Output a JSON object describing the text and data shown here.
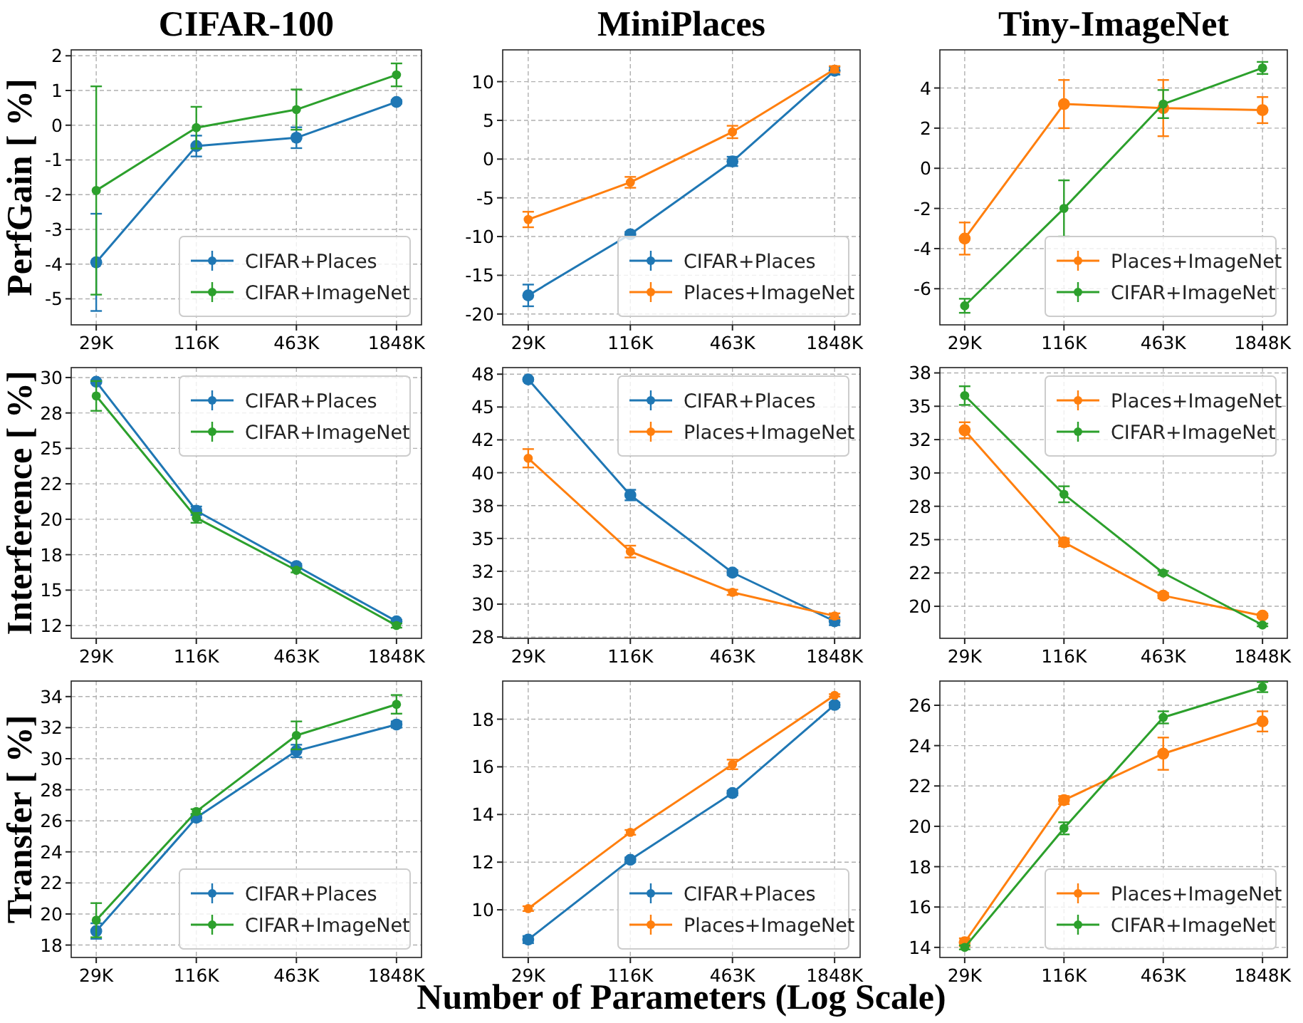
{
  "chart_data": [
    {
      "type": "line",
      "title": "CIFAR-100",
      "ylabel": "PerfGain [ %]",
      "categories": [
        "29K",
        "116K",
        "463K",
        "1848K"
      ],
      "ylim": [
        -5.75,
        2.17
      ],
      "yticks": [
        -5,
        -4,
        -3,
        -2,
        -1,
        0,
        1,
        2
      ],
      "grid": true,
      "legend": "bottom right",
      "marker": "circle",
      "series": [
        {
          "name": "CIFAR+Places",
          "color": "#1f77b4",
          "values": [
            -3.95,
            -0.6,
            -0.36,
            0.67
          ],
          "errors": [
            1.4,
            0.3,
            0.3,
            0.05
          ]
        },
        {
          "name": "CIFAR+ImageNet",
          "color": "#2ca02c",
          "values": [
            -1.88,
            -0.07,
            0.45,
            1.45
          ],
          "errors": [
            3.0,
            0.6,
            0.58,
            0.33
          ]
        }
      ]
    },
    {
      "type": "line",
      "title": "MiniPlaces",
      "categories": [
        "29K",
        "116K",
        "463K",
        "1848K"
      ],
      "ylim": [
        -21.4,
        14.1
      ],
      "yticks": [
        -20,
        -15,
        -10,
        -5,
        0,
        5,
        10
      ],
      "grid": true,
      "legend": "bottom right",
      "marker": "circle",
      "series": [
        {
          "name": "CIFAR+Places",
          "color": "#1f77b4",
          "values": [
            -17.6,
            -9.7,
            -0.3,
            11.4
          ],
          "errors": [
            1.4,
            0.3,
            0.6,
            0.5
          ]
        },
        {
          "name": "Places+ImageNet",
          "color": "#ff7f0e",
          "values": [
            -7.8,
            -3.0,
            3.5,
            11.6
          ],
          "errors": [
            1.0,
            0.7,
            0.8,
            0.4
          ]
        }
      ]
    },
    {
      "type": "line",
      "title": "Tiny-ImageNet",
      "categories": [
        "29K",
        "116K",
        "463K",
        "1848K"
      ],
      "ylim": [
        -7.8,
        5.9
      ],
      "yticks": [
        -6,
        -4,
        -2,
        0,
        2,
        4
      ],
      "grid": true,
      "legend": "bottom right",
      "marker": "circle",
      "series": [
        {
          "name": "Places+ImageNet",
          "color": "#ff7f0e",
          "values": [
            -3.5,
            3.2,
            3.0,
            2.9
          ],
          "errors": [
            0.8,
            1.2,
            1.4,
            0.65
          ]
        },
        {
          "name": "CIFAR+ImageNet",
          "color": "#2ca02c",
          "values": [
            -6.85,
            -2.0,
            3.2,
            5.0
          ],
          "errors": [
            0.35,
            1.4,
            0.7,
            0.3
          ]
        }
      ]
    },
    {
      "type": "line",
      "ylabel": "Interference [ %]",
      "categories": [
        "29K",
        "116K",
        "463K",
        "1848K"
      ],
      "ylim": [
        11.6,
        30.7
      ],
      "yticks": [
        {
          "value": 12.5,
          "label": "12"
        },
        15,
        {
          "value": 17.5,
          "label": "18"
        },
        20,
        {
          "value": 22.5,
          "label": "22"
        },
        25,
        {
          "value": 27.5,
          "label": "28"
        },
        30
      ],
      "grid": true,
      "legend": "top right",
      "marker": "circle",
      "series": [
        {
          "name": "CIFAR+Places",
          "color": "#1f77b4",
          "values": [
            29.7,
            20.6,
            16.7,
            12.8
          ],
          "errors": [
            0.1,
            0.3,
            0.15,
            0.1
          ]
        },
        {
          "name": "CIFAR+ImageNet",
          "color": "#2ca02c",
          "values": [
            28.7,
            20.1,
            16.4,
            12.5
          ],
          "errors": [
            1.05,
            0.35,
            0.15,
            0.15
          ]
        }
      ]
    },
    {
      "type": "line",
      "categories": [
        "29K",
        "116K",
        "463K",
        "1848K"
      ],
      "ylim": [
        27.4,
        48.0
      ],
      "yticks": [
        {
          "value": 27.5,
          "label": "28"
        },
        30,
        {
          "value": 32.5,
          "label": "32"
        },
        35,
        {
          "value": 37.5,
          "label": "38"
        },
        40,
        {
          "value": 42.5,
          "label": "42"
        },
        45,
        {
          "value": 47.5,
          "label": "48"
        }
      ],
      "grid": true,
      "legend": "top right",
      "marker": "circle",
      "series": [
        {
          "name": "CIFAR+Places",
          "color": "#1f77b4",
          "values": [
            47.1,
            38.3,
            32.4,
            28.7
          ],
          "errors": [
            0.1,
            0.4,
            0.2,
            0.3
          ]
        },
        {
          "name": "Places+ImageNet",
          "color": "#ff7f0e",
          "values": [
            41.1,
            34.0,
            30.9,
            29.1
          ],
          "errors": [
            0.7,
            0.45,
            0.2,
            0.2
          ]
        }
      ]
    },
    {
      "type": "line",
      "categories": [
        "29K",
        "116K",
        "463K",
        "1848K"
      ],
      "ylim": [
        17.6,
        37.9
      ],
      "yticks": [
        20,
        {
          "value": 22.5,
          "label": "22"
        },
        25,
        {
          "value": 27.5,
          "label": "28"
        },
        30,
        {
          "value": 32.5,
          "label": "32"
        },
        35,
        {
          "value": 37.5,
          "label": "38"
        }
      ],
      "grid": true,
      "legend": "top right",
      "marker": "circle",
      "series": [
        {
          "name": "Places+ImageNet",
          "color": "#ff7f0e",
          "values": [
            33.2,
            24.8,
            20.8,
            19.3
          ],
          "errors": [
            0.6,
            0.3,
            0.2,
            0.15
          ]
        },
        {
          "name": "CIFAR+ImageNet",
          "color": "#2ca02c",
          "values": [
            35.8,
            28.4,
            22.5,
            18.6
          ],
          "errors": [
            0.7,
            0.6,
            0.15,
            0.1
          ]
        }
      ]
    },
    {
      "type": "line",
      "ylabel": "Transfer [ %]",
      "categories": [
        "29K",
        "116K",
        "463K",
        "1848K"
      ],
      "ylim": [
        17.2,
        35.0
      ],
      "yticks": [
        18,
        20,
        22,
        24,
        26,
        28,
        30,
        32,
        34
      ],
      "grid": true,
      "legend": "bottom right",
      "marker": "circle",
      "series": [
        {
          "name": "CIFAR+Places",
          "color": "#1f77b4",
          "values": [
            18.9,
            26.2,
            30.5,
            32.2
          ],
          "errors": [
            0.5,
            0.2,
            0.4,
            0.2
          ]
        },
        {
          "name": "CIFAR+ImageNet",
          "color": "#2ca02c",
          "values": [
            19.6,
            26.6,
            31.5,
            33.5
          ],
          "errors": [
            1.1,
            0.15,
            0.9,
            0.6
          ]
        }
      ]
    },
    {
      "type": "line",
      "xlabel": "Number of Parameters (Log Scale)",
      "categories": [
        "29K",
        "116K",
        "463K",
        "1848K"
      ],
      "ylim": [
        8.0,
        19.6
      ],
      "yticks": [
        10,
        12,
        14,
        16,
        18
      ],
      "grid": true,
      "legend": "bottom right",
      "marker": "circle",
      "series": [
        {
          "name": "CIFAR+Places",
          "color": "#1f77b4",
          "values": [
            8.75,
            12.1,
            14.9,
            18.6
          ],
          "errors": [
            0.15,
            0.1,
            0.1,
            0.1
          ]
        },
        {
          "name": "Places+ImageNet",
          "color": "#ff7f0e",
          "values": [
            10.05,
            13.25,
            16.1,
            19.0
          ],
          "errors": [
            0.1,
            0.1,
            0.2,
            0.05
          ]
        }
      ]
    },
    {
      "type": "line",
      "categories": [
        "29K",
        "116K",
        "463K",
        "1848K"
      ],
      "ylim": [
        13.5,
        27.2
      ],
      "yticks": [
        14,
        16,
        18,
        20,
        22,
        24,
        26
      ],
      "grid": true,
      "legend": "bottom right",
      "marker": "circle",
      "series": [
        {
          "name": "Places+ImageNet",
          "color": "#ff7f0e",
          "values": [
            14.25,
            21.3,
            23.6,
            25.2
          ],
          "errors": [
            0.2,
            0.2,
            0.8,
            0.5
          ]
        },
        {
          "name": "CIFAR+ImageNet",
          "color": "#2ca02c",
          "values": [
            14.0,
            19.9,
            25.4,
            26.9
          ],
          "errors": [
            0.1,
            0.3,
            0.3,
            0.25
          ]
        }
      ]
    }
  ]
}
